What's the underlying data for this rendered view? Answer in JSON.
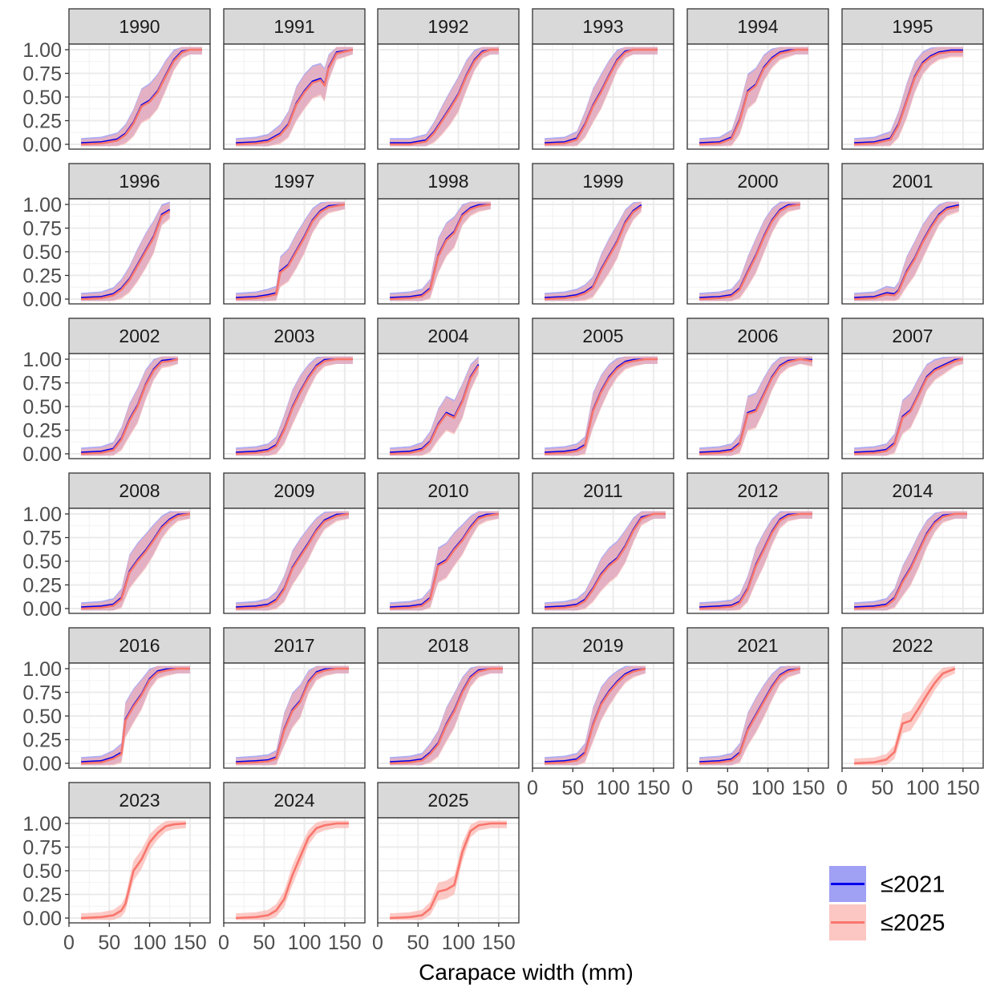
{
  "chart_data": {
    "type": "line",
    "facet_type": "faceted line plot with confidence ribbons",
    "xlabel": "Carapace width (mm)",
    "ylabel": "",
    "xlim": [
      0,
      175
    ],
    "ylim": [
      0,
      1
    ],
    "x_ticks": [
      "0",
      "50",
      "100",
      "150"
    ],
    "y_ticks": [
      "0.00",
      "0.25",
      "0.50",
      "0.75",
      "1.00"
    ],
    "grid": true,
    "legend_position": "bottom-right",
    "colors": {
      "series_2021_line": "#0000ee",
      "series_2021_fill": "#8080f0",
      "series_2025_line": "#f8766d",
      "series_2025_fill": "#fbb4ae",
      "strip_bg": "#d9d9d9",
      "grid": "#ebebeb",
      "border": "#333333"
    },
    "series": [
      {
        "name": "≤2021",
        "color": "#0000ee",
        "band_color": "#8080f0"
      },
      {
        "name": "≤2025",
        "color": "#f8766d",
        "band_color": "#fbb4ae"
      }
    ],
    "facets": [
      {
        "year": "1990",
        "x": [
          15,
          40,
          60,
          70,
          80,
          90,
          100,
          110,
          120,
          130,
          140,
          150,
          165
        ],
        "y": [
          0.0,
          0.01,
          0.04,
          0.1,
          0.22,
          0.4,
          0.45,
          0.55,
          0.72,
          0.88,
          0.97,
          1.0,
          1.0
        ]
      },
      {
        "year": "1991",
        "x": [
          15,
          40,
          55,
          70,
          80,
          90,
          100,
          110,
          120,
          125,
          130,
          140,
          160
        ],
        "y": [
          0.0,
          0.01,
          0.03,
          0.1,
          0.2,
          0.42,
          0.55,
          0.65,
          0.68,
          0.62,
          0.8,
          0.96,
          1.0
        ]
      },
      {
        "year": "1992",
        "x": [
          15,
          40,
          60,
          70,
          80,
          90,
          100,
          110,
          120,
          130,
          140,
          150
        ],
        "y": [
          0.0,
          0.0,
          0.03,
          0.12,
          0.25,
          0.38,
          0.52,
          0.72,
          0.88,
          0.97,
          1.0,
          1.0
        ]
      },
      {
        "year": "1993",
        "x": [
          15,
          40,
          55,
          65,
          75,
          85,
          95,
          105,
          115,
          125,
          140,
          155
        ],
        "y": [
          0.0,
          0.01,
          0.05,
          0.2,
          0.4,
          0.55,
          0.72,
          0.88,
          0.97,
          1.0,
          1.0,
          1.0
        ]
      },
      {
        "year": "1994",
        "x": [
          15,
          40,
          55,
          65,
          75,
          85,
          95,
          105,
          115,
          125,
          135,
          150
        ],
        "y": [
          0.0,
          0.01,
          0.06,
          0.25,
          0.55,
          0.62,
          0.8,
          0.9,
          0.96,
          0.98,
          1.0,
          1.0
        ]
      },
      {
        "year": "1995",
        "x": [
          15,
          40,
          60,
          70,
          80,
          90,
          100,
          110,
          120,
          135,
          150
        ],
        "y": [
          0.0,
          0.01,
          0.05,
          0.2,
          0.45,
          0.7,
          0.85,
          0.92,
          0.96,
          0.98,
          0.98
        ]
      },
      {
        "year": "1996",
        "x": [
          15,
          40,
          55,
          65,
          75,
          85,
          95,
          105,
          115,
          125
        ],
        "y": [
          0.0,
          0.01,
          0.04,
          0.1,
          0.2,
          0.35,
          0.5,
          0.65,
          0.88,
          0.93
        ]
      },
      {
        "year": "1997",
        "x": [
          15,
          40,
          55,
          65,
          70,
          80,
          90,
          100,
          110,
          120,
          130,
          150
        ],
        "y": [
          0.0,
          0.01,
          0.03,
          0.05,
          0.28,
          0.35,
          0.5,
          0.65,
          0.82,
          0.92,
          0.97,
          1.0
        ]
      },
      {
        "year": "1998",
        "x": [
          15,
          40,
          55,
          65,
          75,
          85,
          95,
          105,
          115,
          125,
          140
        ],
        "y": [
          0.0,
          0.01,
          0.03,
          0.1,
          0.45,
          0.62,
          0.7,
          0.88,
          0.95,
          0.98,
          1.0
        ]
      },
      {
        "year": "1999",
        "x": [
          15,
          40,
          55,
          65,
          75,
          85,
          95,
          105,
          115,
          125,
          135
        ],
        "y": [
          0.0,
          0.01,
          0.03,
          0.06,
          0.12,
          0.3,
          0.45,
          0.6,
          0.8,
          0.92,
          0.98
        ]
      },
      {
        "year": "2000",
        "x": [
          15,
          40,
          55,
          65,
          75,
          85,
          95,
          105,
          115,
          125,
          140
        ],
        "y": [
          0.0,
          0.01,
          0.03,
          0.1,
          0.28,
          0.45,
          0.65,
          0.82,
          0.93,
          0.98,
          1.0
        ]
      },
      {
        "year": "2001",
        "x": [
          15,
          40,
          55,
          65,
          70,
          80,
          90,
          100,
          110,
          120,
          130,
          145
        ],
        "y": [
          0.0,
          0.01,
          0.05,
          0.04,
          0.08,
          0.28,
          0.42,
          0.6,
          0.75,
          0.88,
          0.95,
          0.98
        ]
      },
      {
        "year": "2002",
        "x": [
          15,
          40,
          55,
          65,
          75,
          85,
          95,
          105,
          115,
          125,
          135
        ],
        "y": [
          0.0,
          0.01,
          0.04,
          0.15,
          0.35,
          0.5,
          0.72,
          0.88,
          0.97,
          0.98,
          1.0
        ]
      },
      {
        "year": "2003",
        "x": [
          15,
          40,
          55,
          65,
          75,
          85,
          95,
          105,
          115,
          125,
          140,
          160
        ],
        "y": [
          0.0,
          0.01,
          0.03,
          0.08,
          0.25,
          0.48,
          0.65,
          0.8,
          0.92,
          0.98,
          1.0,
          1.0
        ]
      },
      {
        "year": "2004",
        "x": [
          15,
          40,
          55,
          65,
          75,
          85,
          95,
          105,
          115,
          125
        ],
        "y": [
          0.0,
          0.01,
          0.04,
          0.12,
          0.3,
          0.42,
          0.38,
          0.55,
          0.8,
          0.93
        ]
      },
      {
        "year": "2005",
        "x": [
          15,
          40,
          55,
          65,
          75,
          85,
          95,
          105,
          115,
          125,
          140,
          155
        ],
        "y": [
          0.0,
          0.01,
          0.03,
          0.08,
          0.45,
          0.65,
          0.8,
          0.9,
          0.96,
          0.98,
          1.0,
          1.0
        ]
      },
      {
        "year": "2006",
        "x": [
          15,
          40,
          55,
          65,
          75,
          85,
          95,
          105,
          115,
          125,
          140,
          155
        ],
        "y": [
          0.0,
          0.01,
          0.03,
          0.1,
          0.42,
          0.45,
          0.62,
          0.8,
          0.92,
          0.97,
          1.0,
          0.98
        ]
      },
      {
        "year": "2007",
        "x": [
          15,
          40,
          55,
          65,
          75,
          85,
          95,
          105,
          115,
          125,
          140,
          150
        ],
        "y": [
          0.0,
          0.01,
          0.03,
          0.1,
          0.38,
          0.45,
          0.62,
          0.8,
          0.88,
          0.92,
          0.98,
          1.0
        ]
      },
      {
        "year": "2008",
        "x": [
          15,
          40,
          55,
          65,
          75,
          85,
          95,
          105,
          115,
          125,
          135,
          150
        ],
        "y": [
          0.0,
          0.01,
          0.03,
          0.1,
          0.38,
          0.5,
          0.6,
          0.72,
          0.85,
          0.93,
          0.98,
          1.0
        ]
      },
      {
        "year": "2009",
        "x": [
          15,
          40,
          55,
          65,
          75,
          85,
          95,
          105,
          115,
          125,
          140,
          155
        ],
        "y": [
          0.0,
          0.01,
          0.03,
          0.08,
          0.2,
          0.42,
          0.55,
          0.68,
          0.82,
          0.92,
          0.98,
          1.0
        ]
      },
      {
        "year": "2010",
        "x": [
          15,
          40,
          55,
          65,
          75,
          85,
          95,
          105,
          115,
          125,
          135,
          150
        ],
        "y": [
          0.0,
          0.01,
          0.03,
          0.1,
          0.45,
          0.5,
          0.62,
          0.72,
          0.85,
          0.95,
          0.98,
          1.0
        ]
      },
      {
        "year": "2011",
        "x": [
          15,
          40,
          55,
          65,
          75,
          85,
          95,
          105,
          115,
          125,
          135,
          150,
          165
        ],
        "y": [
          0.0,
          0.01,
          0.03,
          0.08,
          0.2,
          0.35,
          0.45,
          0.52,
          0.65,
          0.82,
          0.95,
          1.0,
          1.0
        ]
      },
      {
        "year": "2012",
        "x": [
          15,
          40,
          55,
          65,
          75,
          85,
          95,
          105,
          115,
          125,
          140,
          155
        ],
        "y": [
          0.0,
          0.01,
          0.02,
          0.06,
          0.2,
          0.45,
          0.62,
          0.8,
          0.93,
          0.98,
          1.0,
          1.0
        ]
      },
      {
        "year": "2014",
        "x": [
          15,
          40,
          55,
          65,
          75,
          85,
          95,
          105,
          115,
          125,
          140,
          155
        ],
        "y": [
          0.0,
          0.01,
          0.03,
          0.1,
          0.28,
          0.42,
          0.6,
          0.78,
          0.9,
          0.97,
          1.0,
          1.0
        ]
      },
      {
        "year": "2016",
        "x": [
          15,
          40,
          55,
          65,
          70,
          80,
          90,
          100,
          110,
          120,
          135,
          150
        ],
        "y": [
          0.0,
          0.01,
          0.05,
          0.1,
          0.45,
          0.6,
          0.72,
          0.88,
          0.96,
          0.98,
          1.0,
          1.0
        ]
      },
      {
        "year": "2017",
        "x": [
          15,
          40,
          55,
          65,
          75,
          85,
          95,
          105,
          115,
          125,
          140,
          155
        ],
        "y": [
          0.0,
          0.01,
          0.02,
          0.05,
          0.35,
          0.55,
          0.65,
          0.85,
          0.95,
          0.98,
          1.0,
          1.0
        ]
      },
      {
        "year": "2018",
        "x": [
          15,
          40,
          55,
          65,
          75,
          85,
          95,
          105,
          115,
          125,
          140,
          155
        ],
        "y": [
          0.0,
          0.01,
          0.03,
          0.1,
          0.2,
          0.4,
          0.55,
          0.75,
          0.9,
          0.97,
          1.0,
          1.0
        ]
      },
      {
        "year": "2019",
        "x": [
          15,
          40,
          55,
          65,
          75,
          85,
          95,
          105,
          115,
          125,
          140
        ],
        "y": [
          0.0,
          0.01,
          0.03,
          0.1,
          0.4,
          0.62,
          0.75,
          0.85,
          0.93,
          0.97,
          1.0
        ]
      },
      {
        "year": "2021",
        "x": [
          15,
          40,
          55,
          65,
          75,
          85,
          95,
          105,
          115,
          125,
          140
        ],
        "y": [
          0.0,
          0.01,
          0.03,
          0.1,
          0.35,
          0.5,
          0.65,
          0.8,
          0.92,
          0.97,
          1.0
        ]
      },
      {
        "year": "2022",
        "x": [
          15,
          40,
          55,
          65,
          75,
          85,
          95,
          105,
          115,
          125,
          140
        ],
        "y": [
          0.0,
          0.01,
          0.04,
          0.12,
          0.42,
          0.45,
          0.58,
          0.72,
          0.85,
          0.95,
          1.0
        ]
      },
      {
        "year": "2023",
        "x": [
          15,
          40,
          55,
          65,
          70,
          80,
          90,
          100,
          110,
          120,
          130,
          145
        ],
        "y": [
          0.0,
          0.01,
          0.03,
          0.08,
          0.15,
          0.5,
          0.62,
          0.8,
          0.9,
          0.97,
          0.99,
          1.0
        ]
      },
      {
        "year": "2024",
        "x": [
          15,
          40,
          55,
          65,
          75,
          85,
          95,
          105,
          115,
          125,
          140,
          155
        ],
        "y": [
          0.0,
          0.01,
          0.03,
          0.08,
          0.2,
          0.45,
          0.65,
          0.85,
          0.95,
          0.98,
          1.0,
          1.0
        ]
      },
      {
        "year": "2025",
        "x": [
          15,
          40,
          55,
          65,
          75,
          85,
          95,
          105,
          115,
          125,
          140,
          160
        ],
        "y": [
          0.0,
          0.01,
          0.03,
          0.1,
          0.28,
          0.3,
          0.35,
          0.7,
          0.92,
          0.98,
          1.0,
          1.0
        ]
      }
    ]
  }
}
